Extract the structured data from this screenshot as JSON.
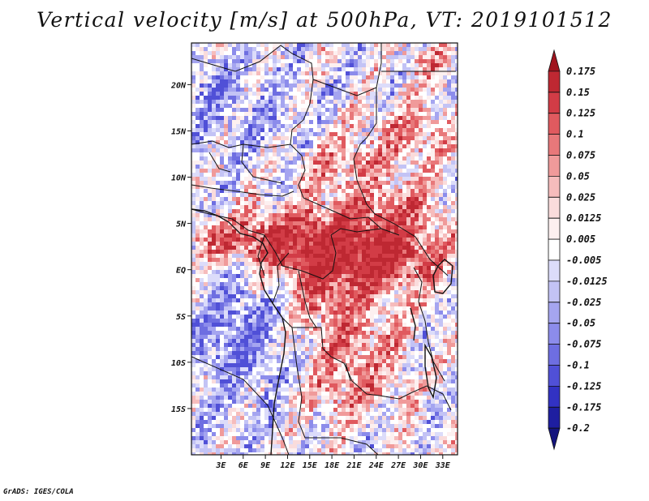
{
  "title": "Vertical velocity [m/s] at 500hPa, VT: 2019101512",
  "credit": "GrADS: IGES/COLA",
  "map": {
    "lon_range": [
      -1,
      35
    ],
    "lat_range": [
      -20,
      24.5
    ],
    "lat_ticks": [
      {
        "value": 20,
        "label": "20N"
      },
      {
        "value": 15,
        "label": "15N"
      },
      {
        "value": 10,
        "label": "10N"
      },
      {
        "value": 5,
        "label": "5N"
      },
      {
        "value": 0,
        "label": "EQ"
      },
      {
        "value": -5,
        "label": "5S"
      },
      {
        "value": -10,
        "label": "10S"
      },
      {
        "value": -15,
        "label": "15S"
      }
    ],
    "lon_ticks": [
      {
        "value": 3,
        "label": "3E"
      },
      {
        "value": 6,
        "label": "6E"
      },
      {
        "value": 9,
        "label": "9E"
      },
      {
        "value": 12,
        "label": "12E"
      },
      {
        "value": 15,
        "label": "15E"
      },
      {
        "value": 18,
        "label": "18E"
      },
      {
        "value": 21,
        "label": "21E"
      },
      {
        "value": 24,
        "label": "24E"
      },
      {
        "value": 27,
        "label": "27E"
      },
      {
        "value": 30,
        "label": "30E"
      },
      {
        "value": 33,
        "label": "33E"
      }
    ]
  },
  "colorbar": {
    "labels": [
      "0.175",
      "0.15",
      "0.125",
      "0.1",
      "0.075",
      "0.05",
      "0.025",
      "0.0125",
      "0.005",
      "-0.005",
      "-0.0125",
      "-0.025",
      "-0.05",
      "-0.075",
      "-0.1",
      "-0.125",
      "-0.175",
      "-0.2"
    ],
    "colors": [
      "#a0141e",
      "#be2832",
      "#d23c46",
      "#e05a5f",
      "#e8787a",
      "#f09a9a",
      "#f6bcbc",
      "#fadcdc",
      "#fdf0f0",
      "#ffffff",
      "#dcdcfa",
      "#c3c3f5",
      "#a5a5f0",
      "#8c8ceb",
      "#6e6ee1",
      "#5050d7",
      "#3232c3",
      "#1e1ea0",
      "#14147d"
    ]
  }
}
